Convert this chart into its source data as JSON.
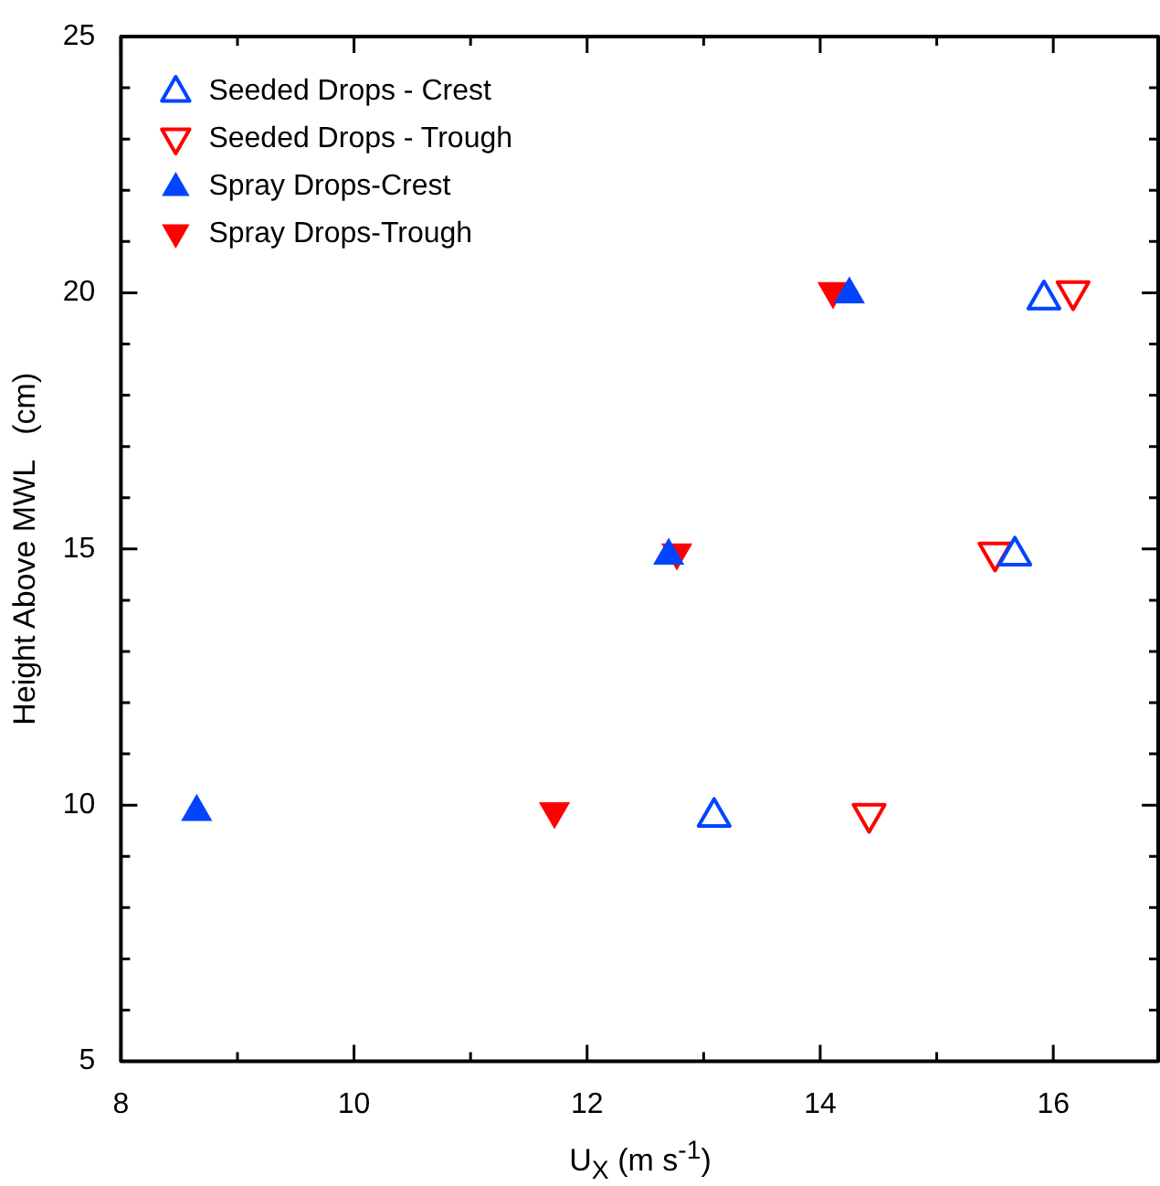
{
  "chart_data": {
    "type": "scatter",
    "xlabel": "U$_{X}$  (m s$^{-1}$)",
    "ylabel": "Height Above MWL   (cm)",
    "xlim": [
      8,
      16.9
    ],
    "xticks": [
      8,
      {
        "value": 9,
        "label": null
      },
      10,
      {
        "value": 11,
        "label": null
      },
      12,
      {
        "value": 13,
        "label": null
      },
      14,
      {
        "value": 15,
        "label": null
      },
      16
    ],
    "ylim": [
      5,
      25
    ],
    "yticks": [
      5,
      {
        "value": 6,
        "label": null
      },
      {
        "value": 7,
        "label": null
      },
      {
        "value": 8,
        "label": null
      },
      {
        "value": 9,
        "label": null
      },
      10,
      {
        "value": 11,
        "label": null
      },
      {
        "value": 12,
        "label": null
      },
      {
        "value": 13,
        "label": null
      },
      {
        "value": 14,
        "label": null
      },
      15,
      {
        "value": 16,
        "label": null
      },
      {
        "value": 17,
        "label": null
      },
      {
        "value": 18,
        "label": null
      },
      {
        "value": 19,
        "label": null
      },
      20,
      {
        "value": 21,
        "label": null
      },
      {
        "value": 22,
        "label": null
      },
      {
        "value": 23,
        "label": null
      },
      {
        "value": 24,
        "label": null
      },
      25
    ],
    "grid": false,
    "legend": "top left",
    "series": [
      {
        "name": "Seeded Drops - Crest",
        "color": "#0044ff",
        "marker": "triangle-open",
        "x": [
          13.09,
          15.67,
          15.92
        ],
        "values": [
          9.8,
          14.9,
          19.9
        ]
      },
      {
        "name": "Seeded Drops - Trough",
        "color": "#ff0000",
        "marker": "triangle-down-open",
        "x": [
          14.42,
          15.5,
          16.17
        ],
        "values": [
          9.8,
          14.9,
          20
        ]
      },
      {
        "name": "Spray Drops-Crest",
        "color": "#0044ff",
        "marker": "triangle",
        "x": [
          8.65,
          12.7,
          14.25
        ],
        "values": [
          9.9,
          14.9,
          20
        ]
      },
      {
        "name": "Spray Drops-Trough",
        "color": "#ff0000",
        "marker": "triangle-down",
        "x": [
          11.72,
          12.77,
          14.11
        ],
        "values": [
          9.85,
          14.9,
          20
        ]
      }
    ]
  }
}
